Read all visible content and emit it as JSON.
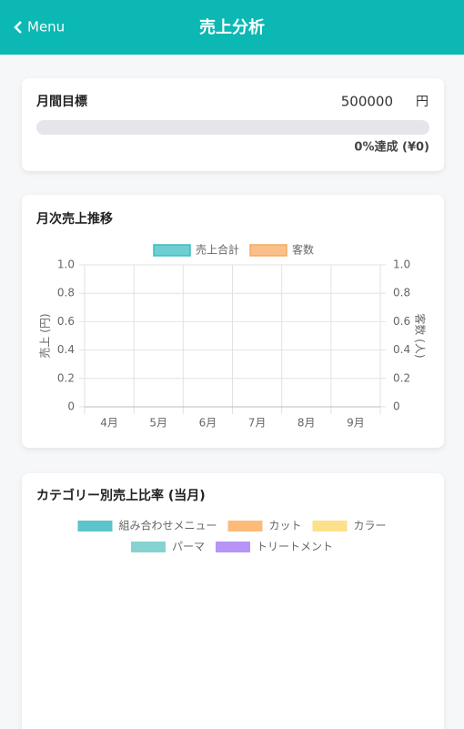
{
  "header": {
    "back": "Menu",
    "title": "売上分析"
  },
  "goal": {
    "label": "月間目標",
    "target": 500000,
    "unit": "円",
    "progress": 0,
    "progress_label": "0%達成 (¥0)"
  },
  "chart_data": [
    {
      "type": "bar",
      "title": "月次売上推移",
      "categories": [
        "4月",
        "5月",
        "6月",
        "7月",
        "8月",
        "9月"
      ],
      "series": [
        {
          "name": "売上合計",
          "color": "#6dcfd3",
          "border": "#3bbdbd",
          "values": [
            0,
            0,
            0,
            0,
            0,
            0
          ]
        },
        {
          "name": "客数",
          "color": "#fbc08a",
          "border": "#f6a95f",
          "axis": "y2",
          "values": [
            0,
            0,
            0,
            0,
            0,
            0
          ]
        }
      ],
      "ylabel": "売上 (円)",
      "y2label": "客数 (人)",
      "ylim": [
        0,
        1
      ],
      "yticks": [
        0,
        0.2,
        0.4,
        0.6,
        0.8,
        {
          "value": 1,
          "label": "1.0"
        }
      ],
      "y2lim": [
        0,
        1
      ],
      "y2ticks": [
        0,
        0.2,
        0.4,
        0.6,
        0.8,
        {
          "value": 1,
          "label": "1.0"
        }
      ],
      "grid": true
    },
    {
      "type": "pie",
      "title": "カテゴリー別売上比率 (当月)",
      "categories": [
        "組み合わせメニュー",
        "カット",
        "カラー",
        "パーマ",
        "トリートメント"
      ],
      "colors": [
        "#5bc4cc",
        "#fdbb7a",
        "#fde08a",
        "#85d3d0",
        "#b794f6"
      ],
      "values": [
        0,
        0,
        0,
        0,
        0
      ]
    }
  ]
}
